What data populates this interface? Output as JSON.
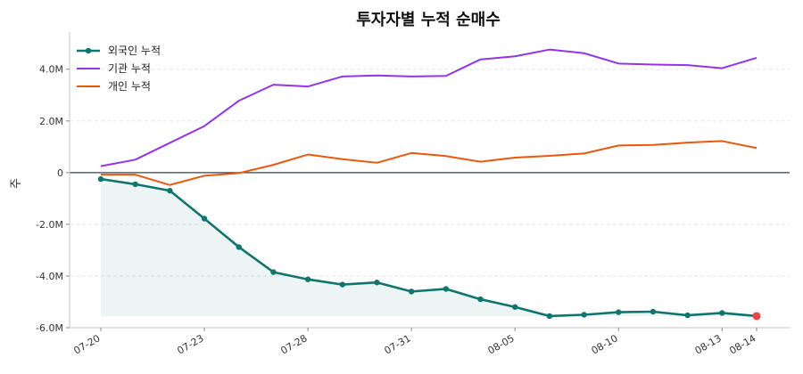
{
  "chart_data": {
    "type": "line",
    "title": "투자자별 누적 순매수",
    "xlabel": "",
    "ylabel": "주",
    "x_tick_labels": [
      "07-20",
      "07-23",
      "07-28",
      "07-31",
      "08-05",
      "08-10",
      "08-13",
      "08-14"
    ],
    "y_tick_labels": [
      "-6.0M",
      "-4.0M",
      "-2.0M",
      "0",
      "2.0M",
      "4.0M"
    ],
    "ylim": [
      -6.0,
      5.3
    ],
    "y_unit": "M",
    "grid": "horizontal-dashed",
    "legend_position": "top-left",
    "series": [
      {
        "name": "외국인 누적",
        "color": "#0f766e",
        "marker": true,
        "fill": true,
        "values": [
          -0.25,
          -0.45,
          -0.7,
          -1.78,
          -2.88,
          -3.85,
          -4.13,
          -4.33,
          -4.25,
          -4.6,
          -4.5,
          -4.9,
          -5.2,
          -5.55,
          -5.5,
          -5.4,
          -5.38,
          -5.52,
          -5.43,
          -5.55
        ]
      },
      {
        "name": "기관 누적",
        "color": "#9333ea",
        "marker": false,
        "fill": false,
        "values": [
          0.25,
          0.5,
          1.15,
          1.8,
          2.78,
          3.4,
          3.33,
          3.72,
          3.76,
          3.72,
          3.74,
          4.38,
          4.5,
          4.76,
          4.62,
          4.22,
          4.18,
          4.16,
          4.04,
          4.44
        ]
      },
      {
        "name": "개인 누적",
        "color": "#ea580c",
        "marker": false,
        "fill": false,
        "values": [
          -0.08,
          -0.08,
          -0.48,
          -0.12,
          -0.02,
          0.3,
          0.7,
          0.52,
          0.38,
          0.76,
          0.64,
          0.42,
          0.58,
          0.65,
          0.74,
          1.05,
          1.07,
          1.16,
          1.22,
          0.95
        ]
      }
    ],
    "last_point_color": "#ef4444",
    "zero_line_color": "#374151"
  }
}
